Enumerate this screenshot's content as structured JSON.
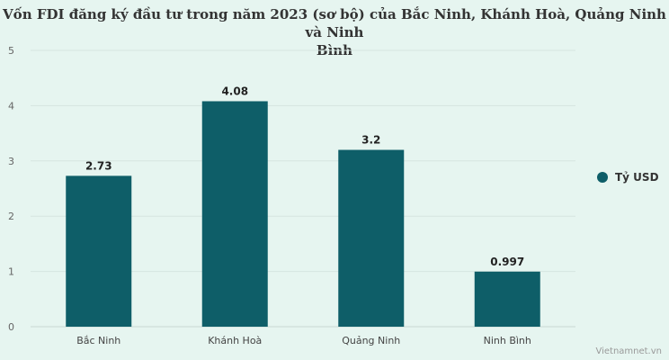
{
  "chart_data": {
    "type": "bar",
    "title_lines": [
      "Vốn FDI đăng ký đầu tư trong năm 2023 (sơ bộ) của Bắc Ninh, Khánh Hoà, Quảng Ninh và Ninh",
      "Bình"
    ],
    "categories": [
      "Bắc Ninh",
      "Khánh Hoà",
      "Quảng Ninh",
      "Ninh Bình"
    ],
    "series": [
      {
        "name": "Tỷ USD",
        "values": [
          2.73,
          4.08,
          3.2,
          0.997
        ],
        "labels": [
          "2.73",
          "4.08",
          "3.2",
          "0.997"
        ]
      }
    ],
    "ylim": [
      0,
      5
    ],
    "yticks": [
      "0",
      "1",
      "2",
      "3",
      "4",
      "5"
    ],
    "grid": true,
    "legend_position": "right",
    "bar_color": "#0e5e68"
  },
  "source": "Vietnamnet.vn"
}
